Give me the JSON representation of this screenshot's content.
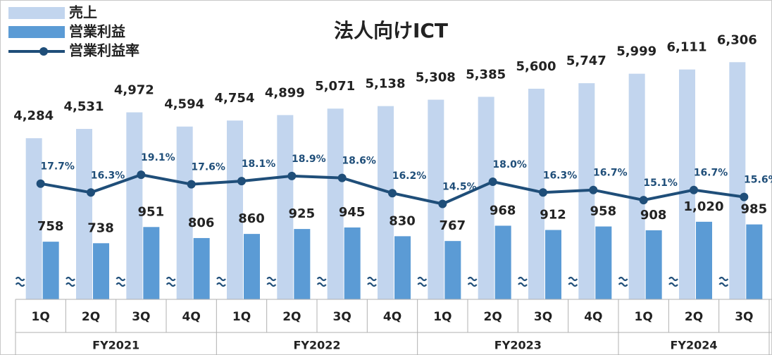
{
  "chart_data": {
    "type": "bar-line",
    "title": "法人向けICT",
    "groups": [
      {
        "name": "FY2021",
        "quarters": [
          "1Q",
          "2Q",
          "3Q",
          "4Q"
        ]
      },
      {
        "name": "FY2022",
        "quarters": [
          "1Q",
          "2Q",
          "3Q",
          "4Q"
        ]
      },
      {
        "name": "FY2023",
        "quarters": [
          "1Q",
          "2Q",
          "3Q",
          "4Q"
        ]
      },
      {
        "name": "FY2024",
        "quarters": [
          "1Q",
          "2Q",
          "3Q"
        ]
      }
    ],
    "series": [
      {
        "name": "売上",
        "type": "bar",
        "color": "#c2d5ee",
        "values": [
          4284,
          4531,
          4972,
          4594,
          4754,
          4899,
          5071,
          5138,
          5308,
          5385,
          5600,
          5747,
          5999,
          6111,
          6306
        ],
        "value_labels": [
          "4,284",
          "4,531",
          "4,972",
          "4,594",
          "4,754",
          "4,899",
          "5,071",
          "5,138",
          "5,308",
          "5,385",
          "5,600",
          "5,747",
          "5,999",
          "6,111",
          "6,306"
        ]
      },
      {
        "name": "営業利益",
        "type": "bar",
        "color": "#5b9bd5",
        "values": [
          758,
          738,
          951,
          806,
          860,
          925,
          945,
          830,
          767,
          968,
          912,
          958,
          908,
          1020,
          985
        ],
        "value_labels": [
          "758",
          "738",
          "951",
          "806",
          "860",
          "925",
          "945",
          "830",
          "767",
          "968",
          "912",
          "958",
          "908",
          "1,020",
          "985"
        ]
      },
      {
        "name": "営業利益率",
        "type": "line",
        "color": "#1f4e79",
        "values": [
          17.7,
          16.3,
          19.1,
          17.6,
          18.1,
          18.9,
          18.6,
          16.2,
          14.5,
          18.0,
          16.3,
          16.7,
          15.1,
          16.7,
          15.6
        ],
        "value_labels": [
          "17.7%",
          "16.3%",
          "19.1%",
          "17.6%",
          "18.1%",
          "18.9%",
          "18.6%",
          "16.2%",
          "14.5%",
          "18.0%",
          "16.3%",
          "16.7%",
          "15.1%",
          "16.7%",
          "15.6%"
        ]
      }
    ]
  }
}
